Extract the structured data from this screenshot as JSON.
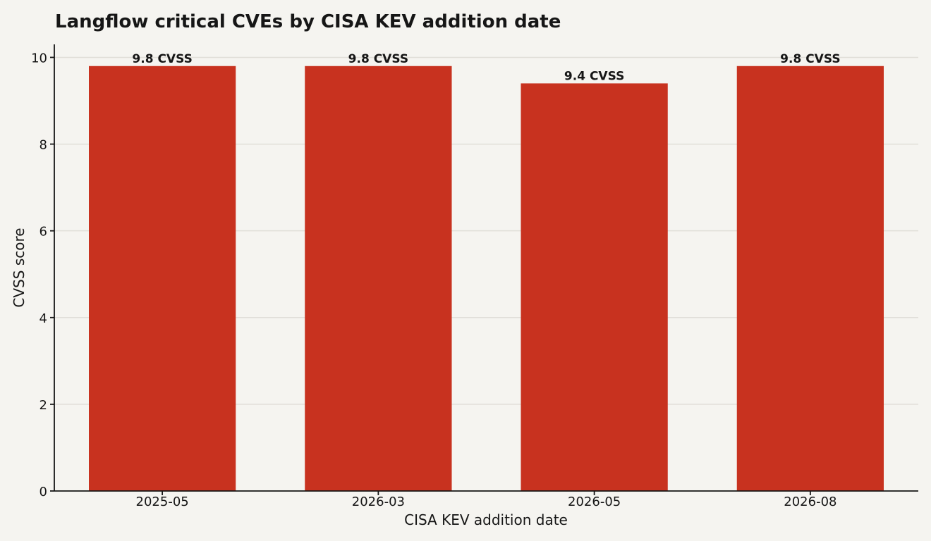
{
  "chart_data": {
    "type": "bar",
    "title": "Langflow critical CVEs by CISA KEV addition date",
    "xlabel": "CISA KEV addition date",
    "ylabel": "CVSS score",
    "categories": [
      "2025-05",
      "2026-03",
      "2026-05",
      "2026-08"
    ],
    "values": [
      9.8,
      9.8,
      9.4,
      9.8
    ],
    "data_labels": [
      "9.8 CVSS",
      "9.8 CVSS",
      "9.4 CVSS",
      "9.8 CVSS"
    ],
    "ylim": [
      0,
      10.3
    ],
    "yticks": [
      0,
      2,
      4,
      6,
      8,
      10
    ],
    "grid": "horizontal",
    "legend": "none",
    "bar_color": "#c8321f"
  }
}
